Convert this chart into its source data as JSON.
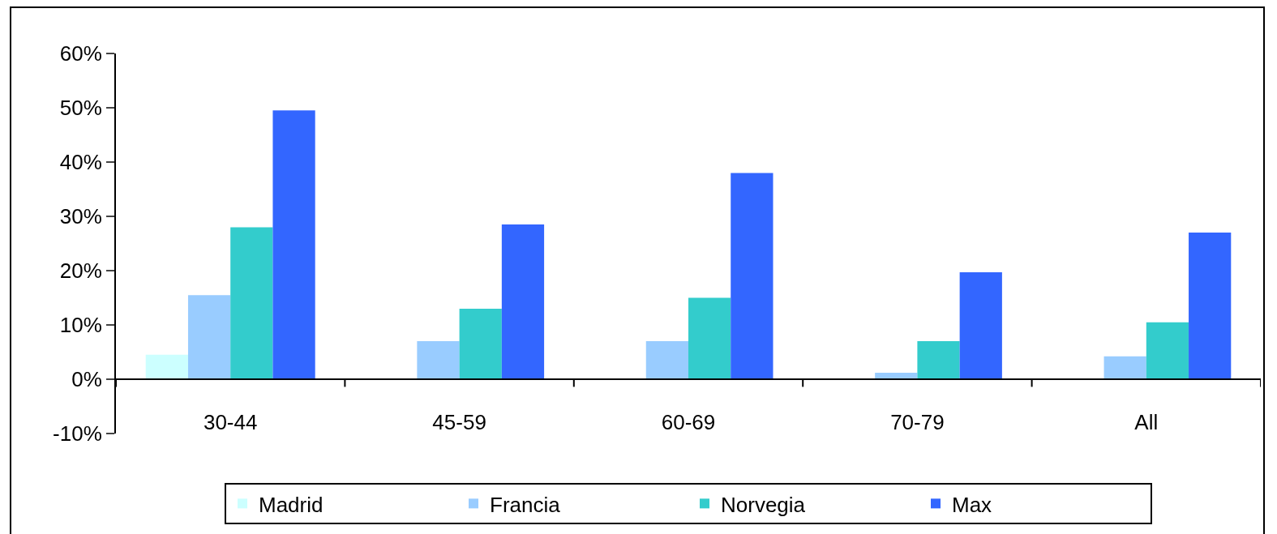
{
  "chart_data": {
    "type": "bar",
    "categories": [
      "30-44",
      "45-59",
      "60-69",
      "70-79",
      "All"
    ],
    "series": [
      {
        "name": "Madrid",
        "color": "#ccffff",
        "values": [
          4.5,
          null,
          null,
          null,
          null
        ]
      },
      {
        "name": "Francia",
        "color": "#99ccff",
        "values": [
          15.5,
          7,
          7,
          1.2,
          4.2
        ]
      },
      {
        "name": "Norvegia",
        "color": "#33cccc",
        "values": [
          28,
          13,
          15,
          7,
          10.5
        ]
      },
      {
        "name": "Max",
        "color": "#3366ff",
        "values": [
          49.5,
          28.5,
          38,
          19.7,
          27
        ]
      }
    ],
    "ylim": [
      -10,
      60
    ],
    "yticks": [
      {
        "value": -10,
        "label": "-10%"
      },
      {
        "value": 0,
        "label": "0%"
      },
      {
        "value": 10,
        "label": "10%"
      },
      {
        "value": 20,
        "label": "20%"
      },
      {
        "value": 30,
        "label": "30%"
      },
      {
        "value": 40,
        "label": "40%"
      },
      {
        "value": 50,
        "label": "50%"
      },
      {
        "value": 60,
        "label": "60%"
      }
    ],
    "grid": false,
    "legend": "bottom"
  }
}
